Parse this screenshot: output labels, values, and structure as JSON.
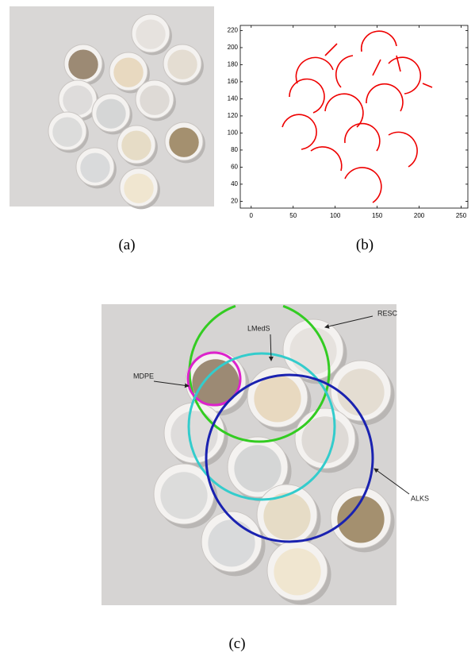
{
  "figure": {
    "panels": [
      {
        "label": "(a)"
      },
      {
        "label": "(b)",
        "plot": {
          "xlim": [
            -13,
            258
          ],
          "ylim": [
            12,
            226
          ],
          "xticks": [
            0,
            50,
            100,
            150,
            200,
            250
          ],
          "yticks": [
            20,
            40,
            60,
            80,
            100,
            120,
            140,
            160,
            180,
            200,
            220
          ]
        }
      },
      {
        "label": "(c)",
        "annotations": [
          "RESC",
          "LMedS",
          "MDPE",
          "ALKS"
        ]
      }
    ]
  }
}
